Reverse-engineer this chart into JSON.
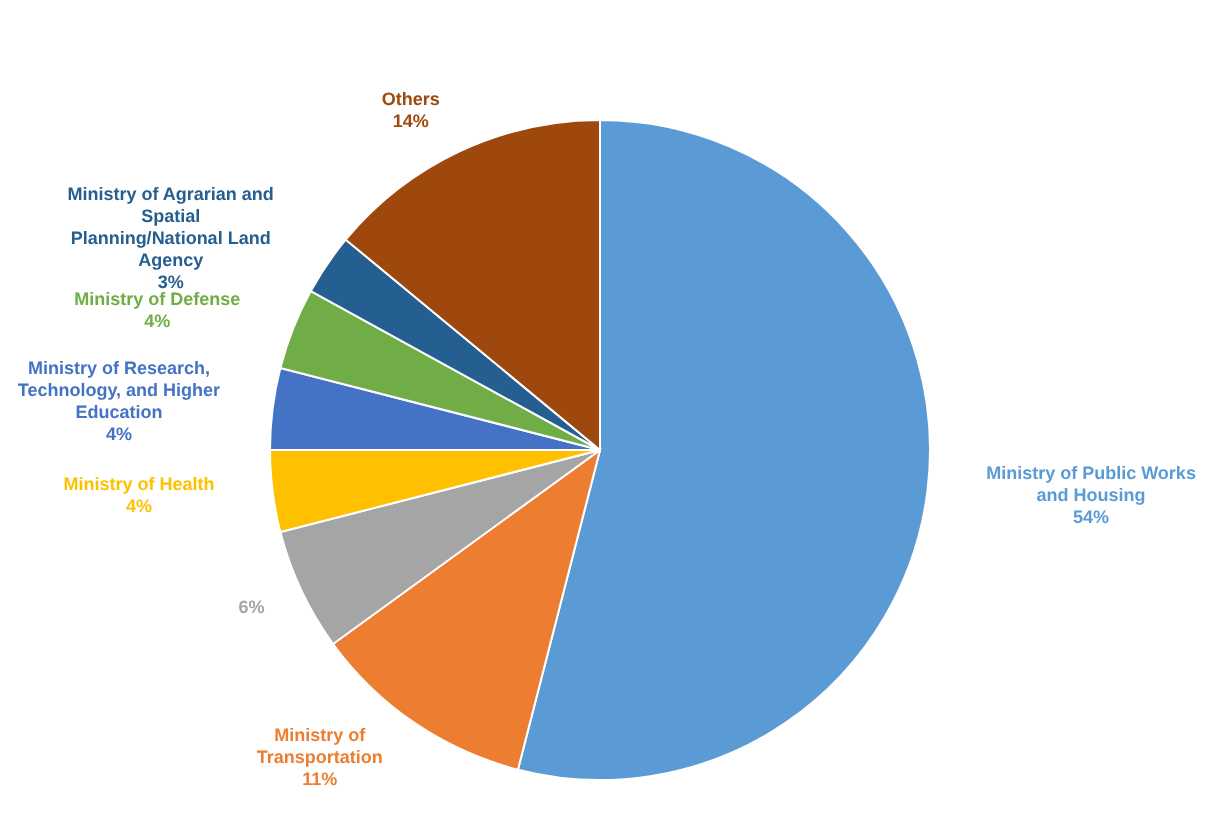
{
  "chart_data": {
    "type": "pie",
    "categories": [
      "Ministry of Public Works and Housing",
      "Ministry of Transportation",
      null,
      "Ministry of Health",
      "Ministry of Research, Technology, and Higher Education",
      "Ministry of Defense",
      "Ministry of Agrarian and Spatial Planning/National Land Agency",
      "Others"
    ],
    "values": [
      54,
      11,
      6,
      4,
      4,
      4,
      3,
      14
    ],
    "value_labels": [
      "54%",
      "11%",
      "6%",
      "4%",
      "4%",
      "4%",
      "3%",
      "14%"
    ],
    "colors": [
      "#5b9bd5",
      "#ed7d31",
      "#a5a5a5",
      "#ffc000",
      "#4472c4",
      "#70ad47",
      "#255e91",
      "#9e480e"
    ],
    "legend": false
  }
}
